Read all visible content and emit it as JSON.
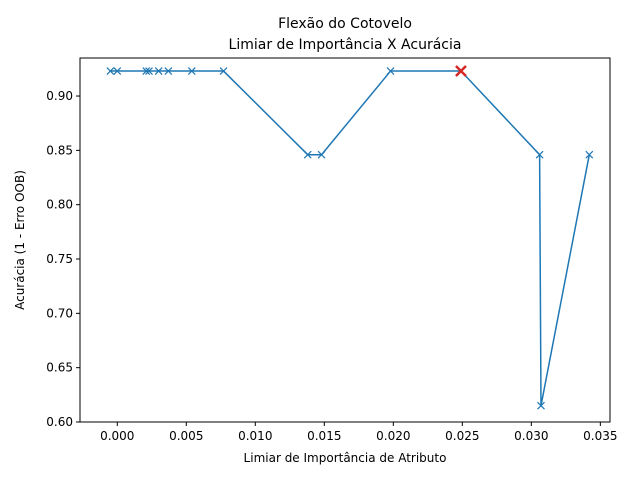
{
  "chart_data": {
    "type": "line",
    "title": "Flexão do Cotovelo",
    "subtitle": "Limiar de Importância X Acurácia",
    "xlabel": "Limiar de Importância de Atributo",
    "ylabel": "Acurácia (1 - Erro OOB)",
    "xlim": [
      -0.0027,
      0.0357
    ],
    "ylim": [
      0.6,
      0.935
    ],
    "xticks": [
      0.0,
      0.005,
      0.01,
      0.015,
      0.02,
      0.025,
      0.03,
      0.035
    ],
    "xtick_labels": [
      "0.000",
      "0.005",
      "0.010",
      "0.015",
      "0.020",
      "0.025",
      "0.030",
      "0.035"
    ],
    "yticks": [
      0.6,
      0.65,
      0.7,
      0.75,
      0.8,
      0.85,
      0.9
    ],
    "ytick_labels": [
      "0.60",
      "0.65",
      "0.70",
      "0.75",
      "0.80",
      "0.85",
      "0.90"
    ],
    "grid": false,
    "line_color": "#1f77b4",
    "highlight_color": "#d62728",
    "series": [
      {
        "x": [
          -0.0005,
          0.0,
          0.0021,
          0.0023,
          0.003,
          0.0037,
          0.0054,
          0.0077,
          0.0138,
          0.0148,
          0.0198,
          0.0249,
          0.0306,
          0.0307,
          0.0342
        ],
        "y": [
          0.923,
          0.923,
          0.923,
          0.923,
          0.923,
          0.923,
          0.923,
          0.923,
          0.846,
          0.846,
          0.923,
          0.923,
          0.846,
          0.615,
          0.846
        ]
      }
    ],
    "highlight": {
      "x": 0.0249,
      "y": 0.923
    }
  }
}
